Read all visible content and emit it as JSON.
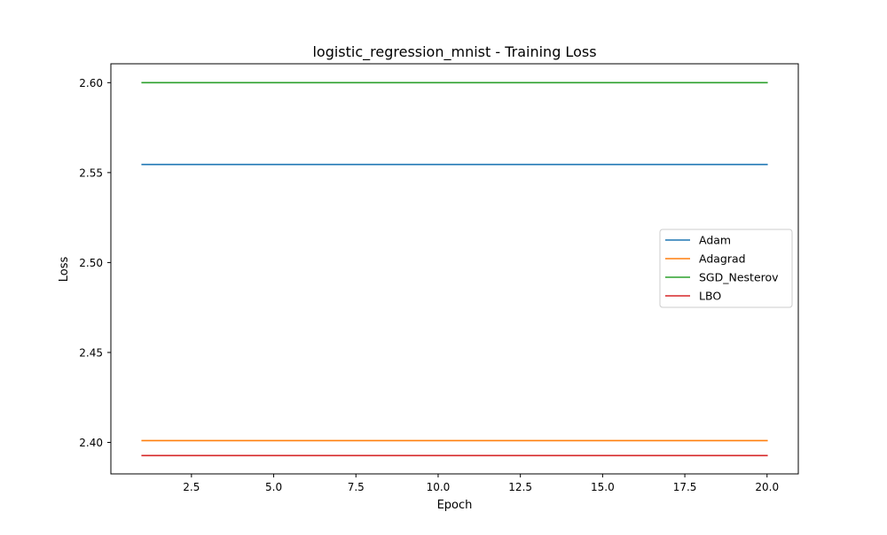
{
  "chart_data": {
    "type": "line",
    "title": "logistic_regression_mnist - Training Loss",
    "xlabel": "Epoch",
    "ylabel": "Loss",
    "xlim": [
      0.05,
      20.95
    ],
    "ylim": [
      2.3825,
      2.6105
    ],
    "x_ticks": [
      2.5,
      5.0,
      7.5,
      10.0,
      12.5,
      15.0,
      17.5,
      20.0
    ],
    "y_ticks": [
      2.4,
      2.45,
      2.5,
      2.55,
      2.6
    ],
    "x_tick_labels": [
      "2.5",
      "5.0",
      "7.5",
      "10.0",
      "12.5",
      "15.0",
      "17.5",
      "20.0"
    ],
    "y_tick_labels": [
      "2.40",
      "2.45",
      "2.50",
      "2.55",
      "2.60"
    ],
    "grid": false,
    "legend_position": "center-right",
    "x": [
      1,
      2,
      3,
      4,
      5,
      6,
      7,
      8,
      9,
      10,
      11,
      12,
      13,
      14,
      15,
      16,
      17,
      18,
      19,
      20
    ],
    "series": [
      {
        "name": "Adam",
        "color": "#1f77b4",
        "values": [
          2.5545,
          2.5545,
          2.5545,
          2.5545,
          2.5545,
          2.5545,
          2.5545,
          2.5545,
          2.5545,
          2.5545,
          2.5545,
          2.5545,
          2.5545,
          2.5545,
          2.5545,
          2.5545,
          2.5545,
          2.5545,
          2.5545,
          2.5545
        ]
      },
      {
        "name": "Adagrad",
        "color": "#ff7f0e",
        "values": [
          2.401,
          2.401,
          2.401,
          2.401,
          2.401,
          2.401,
          2.401,
          2.401,
          2.401,
          2.401,
          2.401,
          2.401,
          2.401,
          2.401,
          2.401,
          2.401,
          2.401,
          2.401,
          2.401,
          2.401
        ]
      },
      {
        "name": "SGD_Nesterov",
        "color": "#2ca02c",
        "values": [
          2.6,
          2.6,
          2.6,
          2.6,
          2.6,
          2.6,
          2.6,
          2.6,
          2.6,
          2.6,
          2.6,
          2.6,
          2.6,
          2.6,
          2.6,
          2.6,
          2.6,
          2.6,
          2.6,
          2.6
        ]
      },
      {
        "name": "LBO",
        "color": "#d62728",
        "values": [
          2.3927,
          2.3927,
          2.3927,
          2.3927,
          2.3927,
          2.3927,
          2.3927,
          2.3927,
          2.3927,
          2.3927,
          2.3927,
          2.3927,
          2.3927,
          2.3927,
          2.3927,
          2.3927,
          2.3927,
          2.3927,
          2.3927,
          2.3927
        ]
      }
    ]
  }
}
